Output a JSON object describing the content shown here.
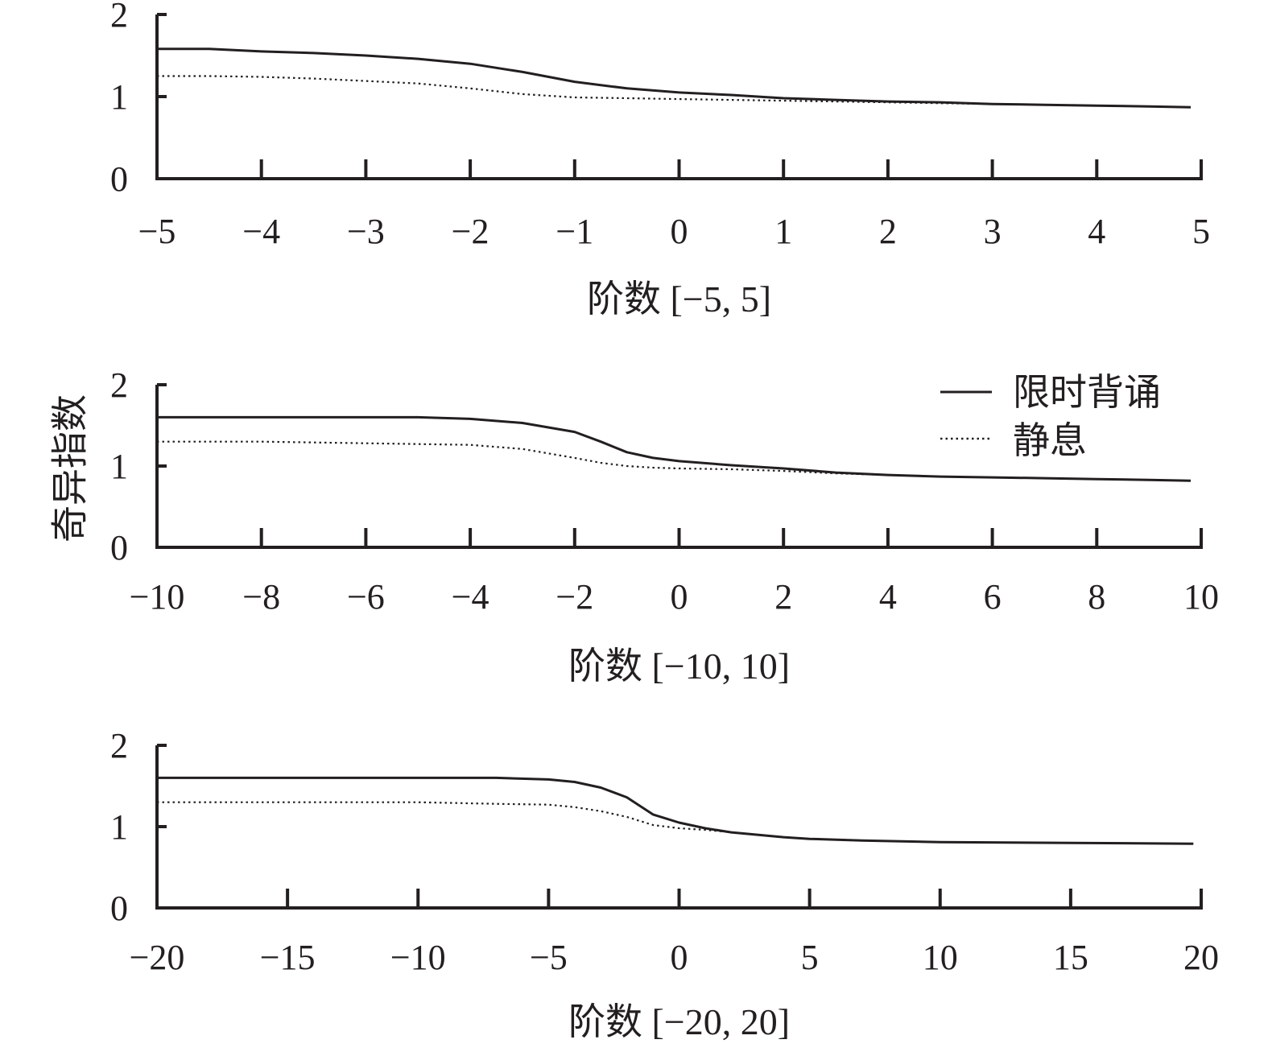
{
  "ylabel": "奇异指数",
  "legend": [
    {
      "label": "限时背诵",
      "style": "solid"
    },
    {
      "label": "静息",
      "style": "dotted"
    }
  ],
  "colors": {
    "line": "#231f20",
    "background": "#ffffff"
  },
  "chart_data": [
    {
      "type": "line",
      "xlabel": "阶数 [−5, 5]",
      "xlim": [
        -5,
        5
      ],
      "ylim": [
        0,
        2
      ],
      "xticks": [
        "−5",
        "−4",
        "−3",
        "−2",
        "−1",
        "0",
        "1",
        "2",
        "3",
        "4",
        "5"
      ],
      "yticks": [
        "0",
        "1",
        "2"
      ],
      "grid": false,
      "series": [
        {
          "name": "限时背诵",
          "style": "solid",
          "x": [
            -5,
            -4.5,
            -4,
            -3.5,
            -3,
            -2.5,
            -2,
            -1.5,
            -1,
            -0.5,
            0,
            0.5,
            1,
            1.5,
            2,
            2.5,
            3,
            3.5,
            4,
            4.5,
            4.9
          ],
          "y": [
            1.58,
            1.58,
            1.55,
            1.53,
            1.5,
            1.46,
            1.4,
            1.3,
            1.18,
            1.1,
            1.05,
            1.02,
            0.98,
            0.96,
            0.94,
            0.93,
            0.91,
            0.9,
            0.89,
            0.88,
            0.87
          ]
        },
        {
          "name": "静息",
          "style": "dotted",
          "x": [
            -5,
            -4.5,
            -4,
            -3.5,
            -3,
            -2.5,
            -2,
            -1.5,
            -1,
            -0.5,
            0,
            0.5,
            1,
            1.5,
            2,
            2.5,
            3,
            3.5,
            4,
            4.5,
            4.9
          ],
          "y": [
            1.25,
            1.25,
            1.24,
            1.22,
            1.19,
            1.16,
            1.1,
            1.03,
            0.99,
            0.98,
            0.97,
            0.96,
            0.95,
            0.94,
            0.93,
            0.92,
            0.91,
            0.9,
            0.89,
            0.88,
            0.87
          ]
        }
      ]
    },
    {
      "type": "line",
      "xlabel": "阶数 [−10, 10]",
      "xlim": [
        -10,
        10
      ],
      "ylim": [
        0,
        2
      ],
      "xticks": [
        "−10",
        "−8",
        "−6",
        "−4",
        "−2",
        "0",
        "2",
        "4",
        "6",
        "8",
        "10"
      ],
      "yticks": [
        "0",
        "1",
        "2"
      ],
      "grid": false,
      "series": [
        {
          "name": "限时背诵",
          "style": "solid",
          "x": [
            -10,
            -8,
            -6,
            -5,
            -4,
            -3,
            -2,
            -1.5,
            -1,
            -0.5,
            0,
            1,
            2,
            3,
            4,
            5,
            6,
            7,
            8,
            9,
            9.8
          ],
          "y": [
            1.6,
            1.6,
            1.6,
            1.6,
            1.58,
            1.53,
            1.42,
            1.3,
            1.17,
            1.1,
            1.06,
            1.01,
            0.97,
            0.92,
            0.89,
            0.87,
            0.86,
            0.85,
            0.84,
            0.83,
            0.82
          ]
        },
        {
          "name": "静息",
          "style": "dotted",
          "x": [
            -10,
            -8,
            -6,
            -5,
            -4,
            -3,
            -2,
            -1.5,
            -1,
            -0.5,
            0,
            1,
            2,
            3,
            4,
            5,
            6,
            7,
            8,
            9,
            9.8
          ],
          "y": [
            1.3,
            1.3,
            1.28,
            1.27,
            1.26,
            1.21,
            1.1,
            1.04,
            1.0,
            0.98,
            0.97,
            0.96,
            0.94,
            0.91,
            0.89,
            0.87,
            0.86,
            0.85,
            0.84,
            0.83,
            0.82
          ]
        }
      ]
    },
    {
      "type": "line",
      "xlabel": "阶数 [−20, 20]",
      "xlim": [
        -20,
        20
      ],
      "ylim": [
        0,
        2
      ],
      "xticks": [
        "−20",
        "−15",
        "−10",
        "−5",
        "0",
        "5",
        "10",
        "15",
        "20"
      ],
      "yticks": [
        "0",
        "1",
        "2"
      ],
      "grid": false,
      "series": [
        {
          "name": "限时背诵",
          "style": "solid",
          "x": [
            -20,
            -15,
            -10,
            -7,
            -5,
            -4,
            -3,
            -2,
            -1,
            0,
            1,
            2,
            3,
            4,
            5,
            7,
            10,
            15,
            19.7
          ],
          "y": [
            1.6,
            1.6,
            1.6,
            1.6,
            1.58,
            1.55,
            1.48,
            1.36,
            1.15,
            1.05,
            0.98,
            0.93,
            0.9,
            0.87,
            0.85,
            0.83,
            0.81,
            0.8,
            0.79
          ]
        },
        {
          "name": "静息",
          "style": "dotted",
          "x": [
            -20,
            -15,
            -10,
            -7,
            -5,
            -4,
            -3,
            -2,
            -1,
            0,
            1,
            2,
            3,
            4,
            5,
            7,
            10,
            15,
            19.7
          ],
          "y": [
            1.3,
            1.3,
            1.3,
            1.28,
            1.27,
            1.24,
            1.19,
            1.12,
            1.02,
            0.98,
            0.96,
            0.93,
            0.9,
            0.87,
            0.85,
            0.83,
            0.81,
            0.8,
            0.79
          ]
        }
      ]
    }
  ]
}
